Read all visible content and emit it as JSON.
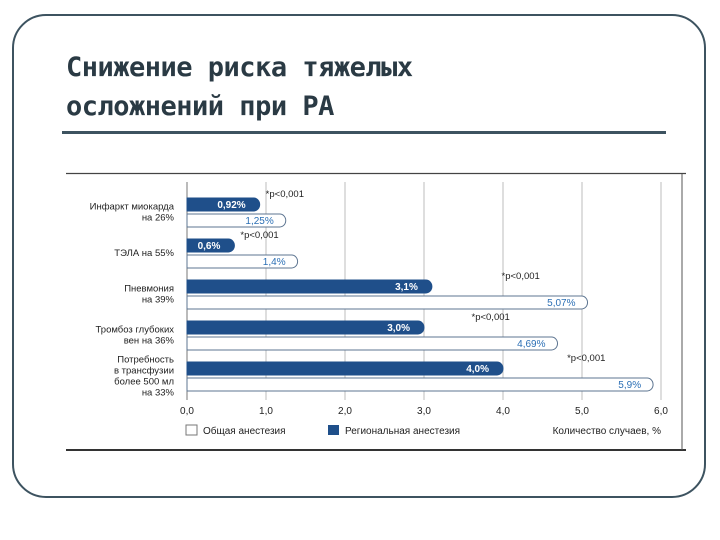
{
  "slide": {
    "title_line1": "Снижение риска тяжелых",
    "title_line2": "осложнений  при РА"
  },
  "chart_data": {
    "type": "bar",
    "orientation": "horizontal",
    "categories": [
      [
        "Инфаркт миокарда",
        "на 26%"
      ],
      [
        "ТЭЛА на 55%"
      ],
      [
        "Пневмония",
        "на 39%"
      ],
      [
        "Тромбоз глубоких",
        "вен на 36%"
      ],
      [
        "Потребность",
        "в трансфузии",
        "более 500 мл",
        "на 33%"
      ]
    ],
    "series": [
      {
        "name": "Региональная анестезия",
        "color": "#1f4f8a",
        "values": [
          0.92,
          0.6,
          3.1,
          3.0,
          4.0
        ],
        "labels": [
          "0,92%",
          "0,6%",
          "3,1%",
          "3,0%",
          "4,0%"
        ]
      },
      {
        "name": "Общая анестезия",
        "color": "#ffffff",
        "values": [
          1.25,
          1.4,
          5.07,
          4.69,
          5.9
        ],
        "labels": [
          "1,25%",
          "1,4%",
          "5,07%",
          "4,69%",
          "5,9%"
        ]
      }
    ],
    "annotations": [
      "*p<0,001",
      "*p<0,001",
      "*p<0,001",
      "*p<0,001",
      "*p<0,001"
    ],
    "xlim": [
      0,
      6
    ],
    "xticks": [
      "0,0",
      "1,0",
      "2,0",
      "3,0",
      "4,0",
      "5,0",
      "6,0"
    ],
    "xlabel": "Количество случаев, %",
    "legend": [
      "Общая анестезия",
      "Региональная анестезия"
    ],
    "legend_position": "bottom-left",
    "grid": true
  }
}
